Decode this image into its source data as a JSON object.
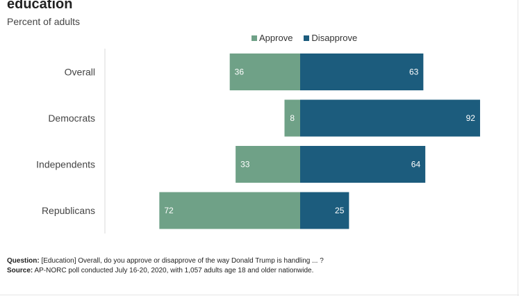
{
  "chart_data": {
    "type": "bar",
    "orientation": "horizontal-diverging",
    "title": "education",
    "subtitle": "Percent of adults",
    "categories": [
      "Overall",
      "Democrats",
      "Independents",
      "Republicans"
    ],
    "series": [
      {
        "name": "Approve",
        "values": [
          36,
          8,
          33,
          72
        ],
        "color": "#6fa187",
        "direction": "left"
      },
      {
        "name": "Disapprove",
        "values": [
          63,
          92,
          64,
          25
        ],
        "color": "#1c5c7d",
        "direction": "right"
      }
    ],
    "value_label_color": "#ffffff",
    "legend": "top",
    "grid": false
  },
  "footnote": {
    "question_label": "Question:",
    "question_text": " [Education] Overall, do you approve or disapprove of the way Donald Trump is handling ... ?",
    "source_label": "Source:",
    "source_text": " AP-NORC poll conducted July 16-20, 2020,  with 1,057  adults age 18 and older nationwide."
  }
}
